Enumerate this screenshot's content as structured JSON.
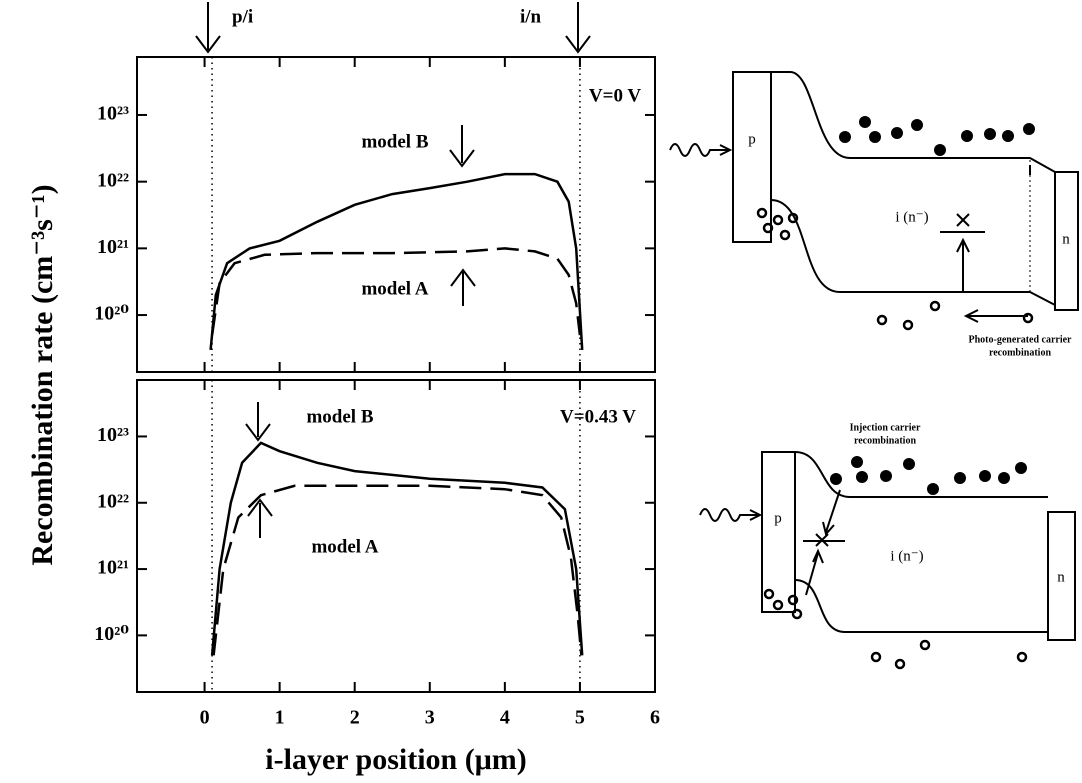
{
  "chart_data": [
    {
      "type": "line",
      "yscale": "log",
      "ylabel": "Recombination rate (cm⁻³s⁻¹)",
      "xlim": [
        -0.9,
        6
      ],
      "xticks": [
        0,
        1,
        2,
        3,
        4,
        5,
        6
      ],
      "ylim": [
        1.4e+19,
        7.4e+23
      ],
      "yticks": [
        {
          "value": 1e+20,
          "label": "10²⁰"
        },
        {
          "value": 1e+21,
          "label": "10²¹"
        },
        {
          "value": 1e+22,
          "label": "10²²"
        },
        {
          "value": 1e+23,
          "label": "10²³"
        }
      ],
      "reference_lines": [
        0.1,
        5.0
      ],
      "annotations": [
        "p/i",
        "i/n",
        "V=0 V"
      ],
      "series": [
        {
          "name": "model B",
          "color": "#000000",
          "style": "solid",
          "x": [
            0.08,
            0.15,
            0.3,
            0.6,
            1.0,
            1.5,
            2.0,
            2.5,
            3.0,
            3.5,
            4.0,
            4.4,
            4.7,
            4.85,
            4.95,
            5.03
          ],
          "values": [
            3e+19,
            2e+20,
            6e+20,
            1e+21,
            1.3e+21,
            2.5e+21,
            4.5e+21,
            6.5e+21,
            8e+21,
            1e+22,
            1.3e+22,
            1.3e+22,
            1e+22,
            5e+21,
            1e+21,
            3e+19
          ]
        },
        {
          "name": "model A",
          "color": "#000000",
          "style": "dashed",
          "x": [
            0.1,
            0.2,
            0.4,
            0.8,
            1.5,
            2.5,
            3.5,
            4.0,
            4.4,
            4.7,
            4.85,
            4.95,
            5.0
          ],
          "values": [
            5e+19,
            3e+20,
            6e+20,
            8e+20,
            8.5e+20,
            8.5e+20,
            9e+20,
            1e+21,
            9e+20,
            7e+20,
            4e+20,
            1.5e+20,
            5e+19
          ]
        }
      ]
    },
    {
      "type": "line",
      "yscale": "log",
      "xlabel": "i-layer position (μm)",
      "xlim": [
        -0.9,
        6
      ],
      "xticks": [
        0,
        1,
        2,
        3,
        4,
        5,
        6
      ],
      "ylim": [
        1.4e+19,
        7.1e+23
      ],
      "yticks": [
        {
          "value": 1e+20,
          "label": "10²⁰"
        },
        {
          "value": 1e+21,
          "label": "10²¹"
        },
        {
          "value": 1e+22,
          "label": "10²²"
        },
        {
          "value": 1e+23,
          "label": "10²³"
        }
      ],
      "reference_lines": [
        0.1,
        5.0
      ],
      "annotations": [
        "V=0.43 V"
      ],
      "series": [
        {
          "name": "model B",
          "color": "#000000",
          "style": "solid",
          "x": [
            0.1,
            0.2,
            0.35,
            0.5,
            0.75,
            1.0,
            1.5,
            2.0,
            3.0,
            4.0,
            4.5,
            4.8,
            4.95,
            5.03
          ],
          "values": [
            5e+19,
            1e+21,
            1e+22,
            4e+22,
            8e+22,
            6e+22,
            4e+22,
            3e+22,
            2.3e+22,
            2e+22,
            1.7e+22,
            8e+21,
            1e+21,
            5e+19
          ]
        },
        {
          "name": "model A",
          "color": "#000000",
          "style": "dashed",
          "x": [
            0.12,
            0.25,
            0.45,
            0.75,
            1.2,
            2.0,
            3.0,
            4.0,
            4.5,
            4.75,
            4.88,
            4.97,
            5.02
          ],
          "values": [
            5e+19,
            1e+21,
            6e+21,
            1.3e+22,
            1.8e+22,
            1.8e+22,
            1.8e+22,
            1.6e+22,
            1.3e+22,
            6e+21,
            1.5e+21,
            2e+20,
            5e+19
          ]
        }
      ]
    }
  ],
  "diagrams": [
    {
      "labels": [
        "p",
        "i (n⁻)",
        "n"
      ],
      "caption": [
        "Photo-generated carrier",
        "recombination"
      ]
    },
    {
      "labels": [
        "p",
        "i (n⁻)",
        "n"
      ],
      "caption": [
        "Injection carrier",
        "recombination"
      ]
    }
  ]
}
